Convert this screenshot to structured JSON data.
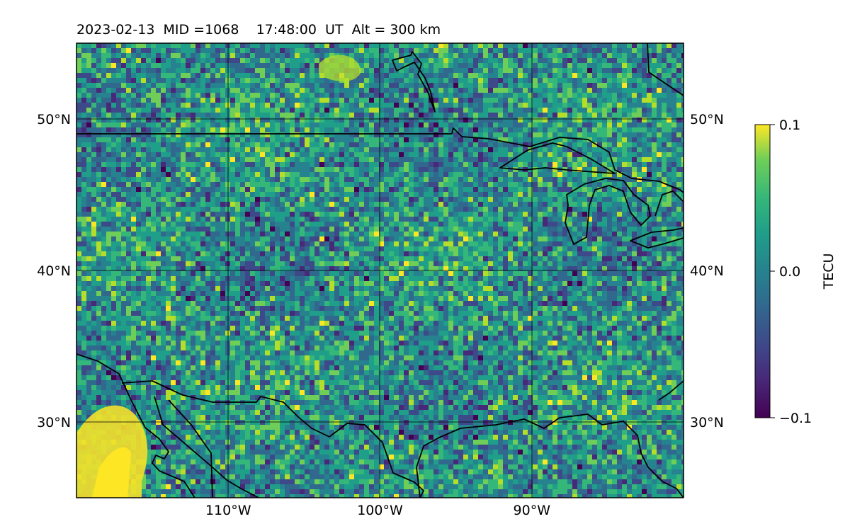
{
  "title": "2023-02-13  MID =1068    17:48:00  UT  Alt = 300 km",
  "map": {
    "lon_range": [
      -120,
      -80
    ],
    "lat_range": [
      25,
      55
    ],
    "lon_ticks": [
      {
        "value": -110,
        "label": "110°W"
      },
      {
        "value": -100,
        "label": "100°W"
      },
      {
        "value": -90,
        "label": "90°W"
      }
    ],
    "lat_ticks": [
      {
        "value": 30,
        "label": "30°N"
      },
      {
        "value": 40,
        "label": "40°N"
      },
      {
        "value": 50,
        "label": "50°N"
      }
    ],
    "grid": true,
    "colormap": "viridis"
  },
  "colorbar": {
    "label": "TECU",
    "min": -0.1,
    "max": 0.1,
    "ticks": [
      {
        "value": 0.1,
        "label": "0.1"
      },
      {
        "value": 0.0,
        "label": "0.0"
      },
      {
        "value": -0.1,
        "label": "−0.1"
      }
    ]
  }
}
